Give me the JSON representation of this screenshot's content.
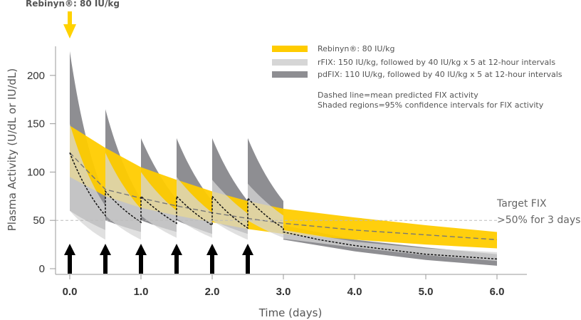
{
  "chart_data": {
    "type": "line",
    "title": "",
    "xlabel": "Time (days)",
    "ylabel": "Plasma Activity (U/dL or IU/dL)",
    "xlim": [
      0,
      6.4
    ],
    "ylim": [
      0,
      230
    ],
    "x_ticks": [
      "0.0",
      "1.0",
      "2.0",
      "3.0",
      "4.0",
      "5.0",
      "6.0"
    ],
    "y_ticks": [
      "0",
      "50",
      "100",
      "150",
      "200"
    ],
    "grid": false,
    "dose_label": "Rebinyn®: 80 IU/kg",
    "dose_times": [
      0,
      0.5,
      1.0,
      1.5,
      2.0,
      2.5
    ],
    "target": {
      "value": 50,
      "label_line1": "Target FIX",
      "label_line2": ">50% for 3 days"
    },
    "legend": [
      {
        "label": "Rebinyn®: 80 IU/kg",
        "color": "#FFCC00"
      },
      {
        "label": "rFIX: 150 IU/kg, followed by 40 IU/kg x 5 at 12-hour intervals",
        "color": "#D6D6D6"
      },
      {
        "label": "pdFIX: 110 IU/kg, followed by 40 IU/kg x 5 at 12-hour intervals",
        "color": "#8E8E92"
      }
    ],
    "notes": [
      "Dashed line=mean predicted FIX activity",
      "Shaded regions=95% confidence intervals for FIX activity"
    ],
    "series": [
      {
        "name": "Rebinyn®: 80 IU/kg",
        "x": [
          0,
          0.5,
          1.0,
          1.5,
          2.0,
          2.5,
          3.0,
          4.0,
          5.0,
          6.0
        ],
        "mean": [
          120,
          82,
          73,
          65,
          58,
          52,
          47,
          40,
          35,
          30
        ],
        "lower": [
          95,
          75,
          63,
          55,
          48,
          41,
          36,
          30,
          25,
          21
        ],
        "upper": [
          148,
          125,
          105,
          92,
          80,
          70,
          62,
          53,
          45,
          38
        ]
      },
      {
        "name": "rFIX: 150 IU/kg, followed by 40 IU/kg x 5 at 12-hour intervals",
        "color": "#D6D6D6",
        "doses": [
          {
            "t0": 0.0,
            "peak_lo": 60,
            "peak_hi": 150,
            "trough_lo": 30,
            "trough_hi": 65
          },
          {
            "t0": 0.5,
            "peak_lo": 55,
            "peak_hi": 120,
            "trough_lo": 30,
            "trough_hi": 62
          },
          {
            "t0": 1.0,
            "peak_lo": 55,
            "peak_hi": 100,
            "trough_lo": 32,
            "trough_hi": 60
          },
          {
            "t0": 1.5,
            "peak_lo": 52,
            "peak_hi": 95,
            "trough_lo": 32,
            "trough_hi": 58
          },
          {
            "t0": 2.0,
            "peak_lo": 50,
            "peak_hi": 92,
            "trough_lo": 30,
            "trough_hi": 57
          },
          {
            "t0": 2.5,
            "peak_lo": 50,
            "peak_hi": 88,
            "trough_lo": 32,
            "trough_hi": 55
          }
        ],
        "tail": {
          "x": [
            3.0,
            4.0,
            5.0,
            6.0
          ],
          "lower": [
            31,
            22,
            14,
            8
          ],
          "upper": [
            40,
            28,
            21,
            17
          ]
        }
      },
      {
        "name": "pdFIX: 110 IU/kg, followed by 40 IU/kg x 5 at 12-hour intervals",
        "color": "#8E8E92",
        "doses": [
          {
            "t0": 0.0,
            "peak_lo": 60,
            "peak_hi": 225,
            "trough_lo": 40,
            "trough_hi": 75
          },
          {
            "t0": 0.5,
            "peak_lo": 50,
            "peak_hi": 165,
            "trough_lo": 38,
            "trough_hi": 72
          },
          {
            "t0": 1.0,
            "peak_lo": 50,
            "peak_hi": 135,
            "trough_lo": 38,
            "trough_hi": 72
          },
          {
            "t0": 1.5,
            "peak_lo": 50,
            "peak_hi": 135,
            "trough_lo": 36,
            "trough_hi": 70
          },
          {
            "t0": 2.0,
            "peak_lo": 50,
            "peak_hi": 135,
            "trough_lo": 36,
            "trough_hi": 70
          },
          {
            "t0": 2.5,
            "peak_lo": 50,
            "peak_hi": 135,
            "trough_lo": 36,
            "trough_hi": 70
          }
        ],
        "tail": {
          "x": [
            3.0,
            4.0,
            5.0,
            6.0
          ],
          "lower": [
            30,
            18,
            9,
            3
          ],
          "upper": [
            45,
            30,
            22,
            15
          ]
        }
      },
      {
        "name": "Mean predicted FIX activity (rFIX/pdFIX)",
        "doses": [
          {
            "t0": 0.0,
            "peak": 120,
            "trough": 55
          },
          {
            "t0": 0.5,
            "peak": 80,
            "trough": 48
          },
          {
            "t0": 1.0,
            "peak": 75,
            "trough": 47
          },
          {
            "t0": 1.5,
            "peak": 75,
            "trough": 45
          },
          {
            "t0": 2.0,
            "peak": 75,
            "trough": 42
          },
          {
            "t0": 2.5,
            "peak": 73,
            "trough": 42
          }
        ],
        "tail": {
          "x": [
            3.0,
            3.5,
            4.0,
            5.0,
            6.0
          ],
          "values": [
            38,
            30,
            24,
            15,
            10
          ]
        }
      }
    ]
  }
}
